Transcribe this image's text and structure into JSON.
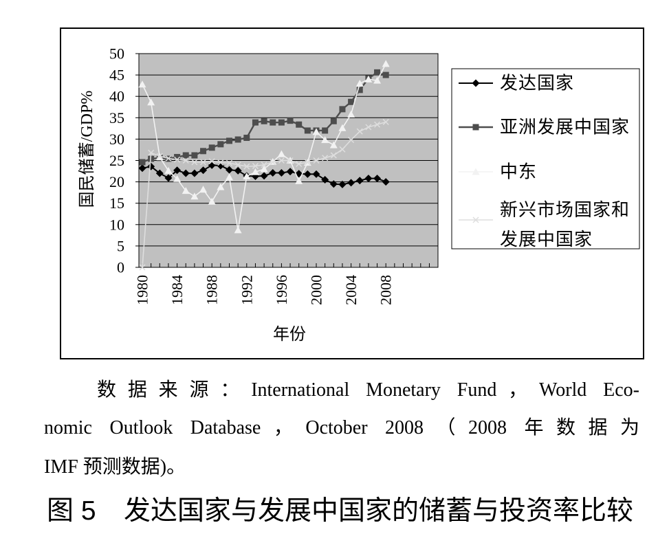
{
  "chart_data": {
    "type": "line",
    "xlabel": "年份",
    "ylabel": "国民储蓄/GDP%",
    "ylim": [
      0,
      50
    ],
    "y_ticks": [
      "0",
      "5",
      "10",
      "15",
      "20",
      "25",
      "30",
      "35",
      "40",
      "45",
      "50"
    ],
    "x_tick_labels": [
      "1980",
      "1984",
      "1988",
      "1992",
      "1996",
      "2000",
      "2004",
      "2008"
    ],
    "grid": true,
    "legend_position": "right",
    "plot_background": "#c0c0c0",
    "x": [
      1980,
      1981,
      1982,
      1983,
      1984,
      1985,
      1986,
      1987,
      1988,
      1989,
      1990,
      1991,
      1992,
      1993,
      1994,
      1995,
      1996,
      1997,
      1998,
      1999,
      2000,
      2001,
      2002,
      2003,
      2004,
      2005,
      2006,
      2007,
      2008
    ],
    "series": [
      {
        "name": "发达国家",
        "marker": "diamond",
        "color": "#000000",
        "values": [
          23.2,
          23.6,
          22.0,
          20.9,
          22.7,
          22.0,
          22.0,
          22.7,
          23.9,
          23.8,
          22.8,
          22.6,
          21.4,
          21.3,
          21.4,
          22.1,
          22.1,
          22.4,
          21.9,
          21.8,
          21.8,
          20.5,
          19.5,
          19.4,
          19.8,
          20.3,
          20.8,
          20.8,
          20.0
        ]
      },
      {
        "name": "亚洲发展中国家",
        "marker": "square",
        "color": "#4d4d4d",
        "values": [
          24.6,
          25.4,
          25.6,
          25.4,
          25.8,
          26.2,
          26.2,
          27.2,
          28.0,
          28.8,
          29.6,
          29.9,
          30.3,
          33.9,
          34.2,
          33.9,
          33.9,
          34.3,
          33.4,
          32.0,
          32.0,
          32.0,
          34.2,
          37.0,
          38.7,
          41.5,
          44.2,
          45.6,
          45.0
        ]
      },
      {
        "name": "中东",
        "marker": "triangle",
        "color": "#f2f2f2",
        "values": [
          42.8,
          38.6,
          25.8,
          22.6,
          20.7,
          17.9,
          16.6,
          18.2,
          15.4,
          18.8,
          21.1,
          8.7,
          21.3,
          22.3,
          23.0,
          24.7,
          26.5,
          25.0,
          20.2,
          24.5,
          31.7,
          29.8,
          28.6,
          32.6,
          35.8,
          43.0,
          44.0,
          43.7,
          47.6
        ]
      },
      {
        "name": "新兴市场国家和发展中国家",
        "marker": "x",
        "color": "#dedede",
        "values": [
          0,
          26.8,
          26.0,
          25.5,
          25.2,
          25.0,
          24.6,
          24.6,
          24.8,
          24.5,
          24.4,
          24.0,
          23.6,
          23.7,
          24.0,
          24.6,
          25.0,
          25.0,
          24.2,
          24.6,
          25.0,
          25.6,
          26.2,
          27.6,
          29.8,
          31.8,
          32.8,
          33.4,
          34.0
        ]
      }
    ]
  },
  "source_note": {
    "lines": [
      "数据来源：International Monetary Fund，World Eco-",
      "nomic Outlook Database，October 2008（2008 年数据为",
      "IMF 预测数据)。"
    ]
  },
  "figure_caption": {
    "number": "图 5",
    "title": "发达国家与发展中国家的储蓄与投资率比较"
  }
}
